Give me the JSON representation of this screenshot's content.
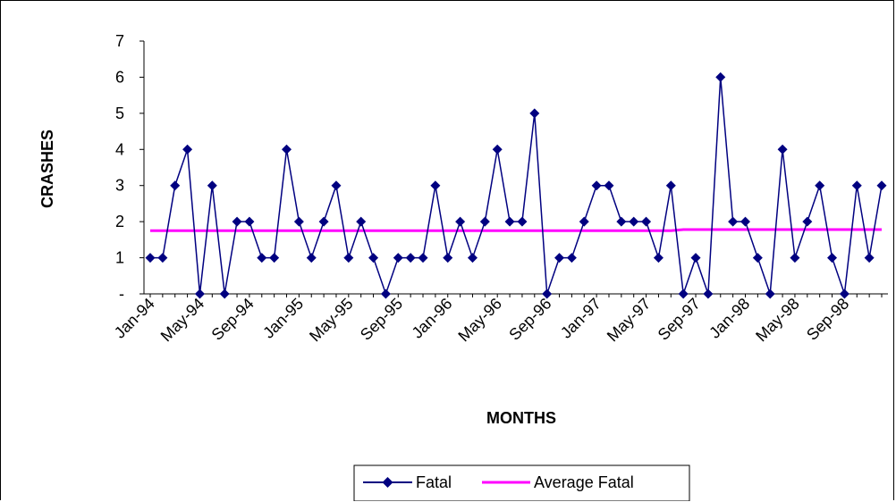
{
  "chart_data": {
    "type": "line",
    "title": "",
    "xlabel": "MONTHS",
    "ylabel": "CRASHES",
    "ylim": [
      0,
      7
    ],
    "y_ticks": [
      "-",
      "1",
      "2",
      "3",
      "4",
      "5",
      "6",
      "7"
    ],
    "x_tick_labels": [
      "Jan-94",
      "May-94",
      "Sep-94",
      "Jan-95",
      "May-95",
      "Sep-95",
      "Jan-96",
      "May-96",
      "Sep-96",
      "Jan-97",
      "May-97",
      "Sep-97",
      "Jan-98",
      "May-98",
      "Sep-98"
    ],
    "x_tick_every": 4,
    "grid": false,
    "legend_position": "bottom",
    "colors": {
      "fatal": "#000080",
      "average": "#ff00ff"
    },
    "series": [
      {
        "name": "Fatal",
        "marker": "diamond",
        "values": [
          1,
          1,
          3,
          4,
          0,
          3,
          0,
          2,
          2,
          1,
          1,
          4,
          2,
          1,
          2,
          3,
          1,
          2,
          1,
          0,
          1,
          1,
          1,
          3,
          1,
          2,
          1,
          2,
          4,
          2,
          2,
          5,
          0,
          1,
          1,
          2,
          3,
          3,
          2,
          2,
          2,
          1,
          3,
          0,
          1,
          0,
          6,
          2,
          2,
          1,
          0,
          4,
          1,
          2,
          3,
          1,
          0,
          3,
          1,
          3
        ]
      },
      {
        "name": "Average Fatal",
        "marker": "none",
        "values": [
          1.75,
          1.75,
          1.75,
          1.75,
          1.75,
          1.75,
          1.75,
          1.75,
          1.75,
          1.75,
          1.75,
          1.75,
          1.75,
          1.75,
          1.75,
          1.75,
          1.75,
          1.75,
          1.75,
          1.75,
          1.75,
          1.75,
          1.75,
          1.75,
          1.75,
          1.75,
          1.75,
          1.75,
          1.75,
          1.75,
          1.75,
          1.75,
          1.75,
          1.75,
          1.75,
          1.75,
          1.75,
          1.75,
          1.75,
          1.75,
          1.75,
          1.75,
          1.75,
          1.78,
          1.78,
          1.78,
          1.78,
          1.78,
          1.78,
          1.78,
          1.78,
          1.78,
          1.78,
          1.78,
          1.78,
          1.78,
          1.78,
          1.78,
          1.78,
          1.78
        ]
      }
    ]
  }
}
